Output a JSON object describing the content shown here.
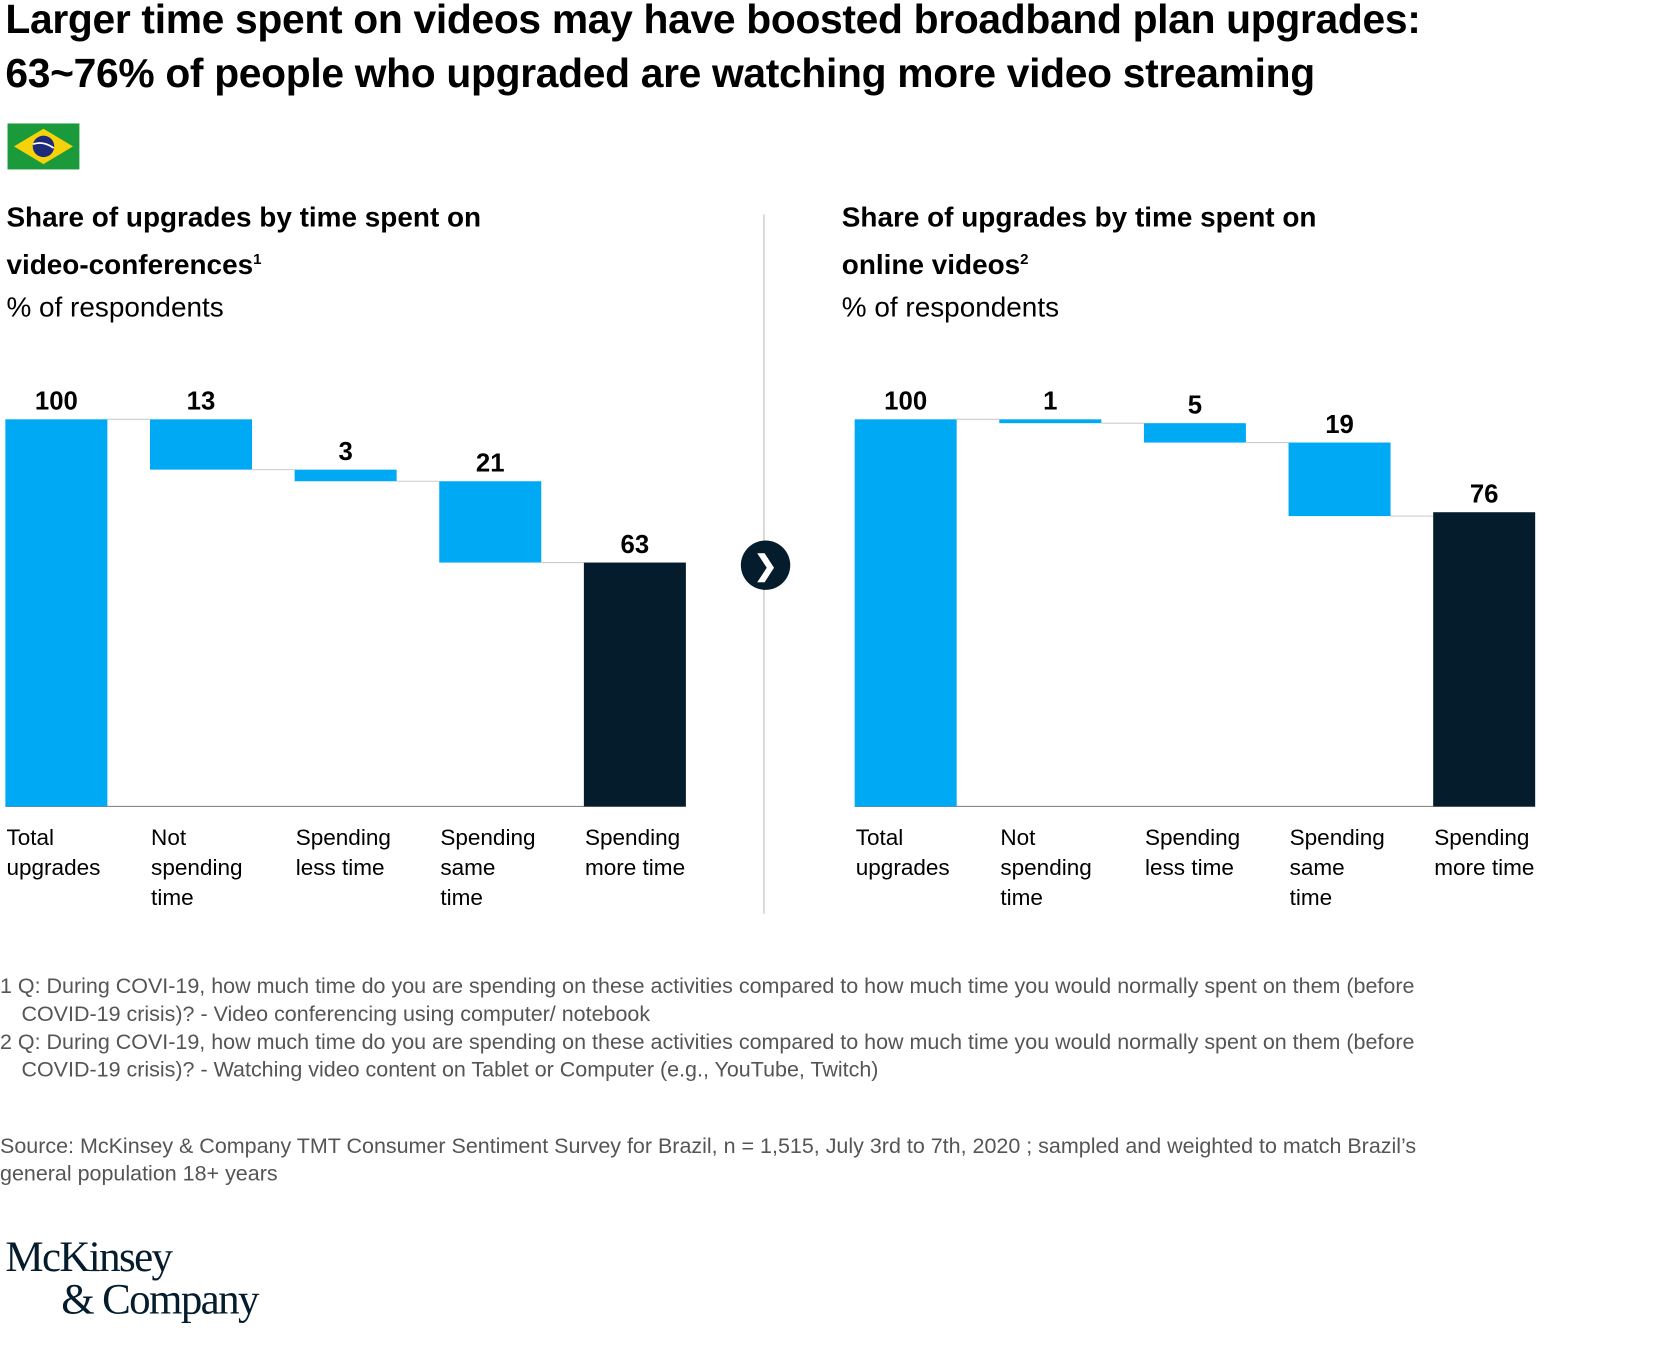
{
  "title_line1": "Larger time spent on videos may have boosted broadband plan upgrades:",
  "title_line2": "63~76% of people who upgraded are watching more video streaming",
  "flag_icon": "brazil-flag-icon",
  "colors": {
    "blue": "#00a9f4",
    "dark": "#051c2c"
  },
  "chart_data": [
    {
      "type": "bar",
      "subtype": "waterfall",
      "title_line1": "Share of upgrades by time spent on",
      "title_line2": "video-conferences",
      "footnote_ref": "1",
      "subtitle": "% of respondents",
      "categories": [
        [
          "Total",
          "upgrades"
        ],
        [
          "Not",
          "spending",
          "time"
        ],
        [
          "Spending",
          "less time"
        ],
        [
          "Spending",
          "same",
          "time"
        ],
        [
          "Spending",
          "more time"
        ]
      ],
      "values": [
        100,
        13,
        3,
        21,
        63
      ],
      "labels": [
        "100",
        "13",
        "3",
        "21",
        "63"
      ],
      "ylim": [
        0,
        100
      ]
    },
    {
      "type": "bar",
      "subtype": "waterfall",
      "title_line1": "Share of upgrades by time spent on",
      "title_line2": "online  videos",
      "footnote_ref": "2",
      "subtitle": "% of respondents",
      "categories": [
        [
          "Total",
          "upgrades"
        ],
        [
          "Not",
          "spending",
          "time"
        ],
        [
          "Spending",
          "less time"
        ],
        [
          "Spending",
          "same",
          "time"
        ],
        [
          "Spending",
          "more time"
        ]
      ],
      "values": [
        100,
        1,
        5,
        19,
        76
      ],
      "labels": [
        "100",
        "1",
        "5",
        "19",
        "76"
      ],
      "ylim": [
        0,
        100
      ]
    }
  ],
  "arrow_icon": "chevron-right-icon",
  "arrow_glyph": "❯",
  "footnotes": [
    "1  Q: During COVI-19, how much time do you are spending on these activities compared to how much time you would normally spent on them (before COVID-19 crisis)? - Video conferencing using computer/ notebook",
    "2  Q: During COVI-19, how much time do you are spending on these activities compared to how much time you would normally spent on them (before COVID-19 crisis)? - Watching video content on Tablet or Computer (e.g., YouTube, Twitch)"
  ],
  "source": "Source: McKinsey & Company TMT Consumer Sentiment Survey for Brazil, n = 1,515, July 3rd to 7th, 2020 ; sampled and weighted to match Brazil’s general population 18+ years",
  "logo_line1": "McKinsey",
  "logo_line2": "& Company"
}
